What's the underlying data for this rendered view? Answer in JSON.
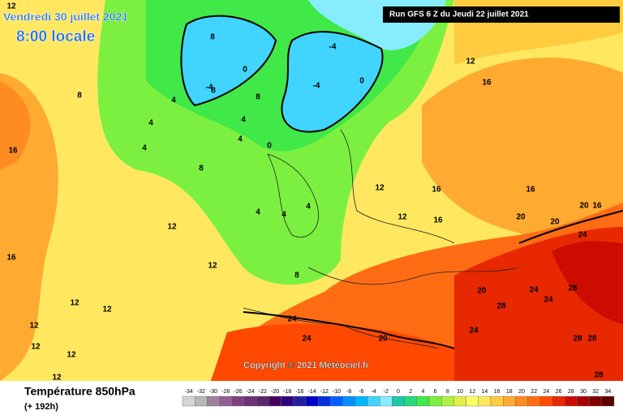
{
  "header": {
    "valid_time": "Vendredi 30 juillet 2021",
    "local_time": "8:00 locale",
    "run": "Run GFS 6 Z du Jeudi 22 juillet 2021"
  },
  "copyright": "Copyright © 2021 Météociel.fr",
  "legend": {
    "title": "Température 850hPa",
    "subtitle": "(+ 192h)",
    "ticks": [
      -34,
      -32,
      -30,
      -28,
      -26,
      -24,
      -22,
      -20,
      -18,
      -16,
      -14,
      -12,
      -10,
      -8,
      -6,
      -4,
      -2,
      0,
      2,
      4,
      6,
      8,
      10,
      12,
      14,
      16,
      18,
      20,
      22,
      24,
      26,
      28,
      30,
      32,
      34
    ],
    "colors": [
      "#d4d4d4",
      "#b8b8b8",
      "#a080a0",
      "#906090",
      "#804080",
      "#6a3078",
      "#582868",
      "#480060",
      "#300080",
      "#2020a0",
      "#0000c8",
      "#0030e0",
      "#0060ff",
      "#0090ff",
      "#00b4ff",
      "#40d4ff",
      "#88ecff",
      "#20c8a8",
      "#28d880",
      "#40e848",
      "#7cf040",
      "#b0f040",
      "#e0f048",
      "#ffff64",
      "#ffe860",
      "#ffcc40",
      "#ffaa30",
      "#ff8c20",
      "#ff6c14",
      "#ff4800",
      "#e82800",
      "#cc0c00",
      "#a80000",
      "#800000",
      "#5c0000"
    ]
  },
  "map_labels": [
    "12",
    "16",
    "16",
    "12",
    "12",
    "12",
    "12",
    "12",
    "12",
    "8",
    "8",
    "4",
    "4",
    "4",
    "4",
    "8",
    "8",
    "4",
    "0",
    "-4",
    "-4",
    "-4",
    "0",
    "0",
    "4",
    "4",
    "4",
    "8",
    "8",
    "12",
    "12",
    "12",
    "12",
    "12",
    "16",
    "16",
    "16",
    "16",
    "20",
    "20",
    "20",
    "16",
    "24",
    "24",
    "24",
    "24",
    "28",
    "28",
    "28",
    "28",
    "20",
    "20",
    "24",
    "24",
    "28"
  ]
}
